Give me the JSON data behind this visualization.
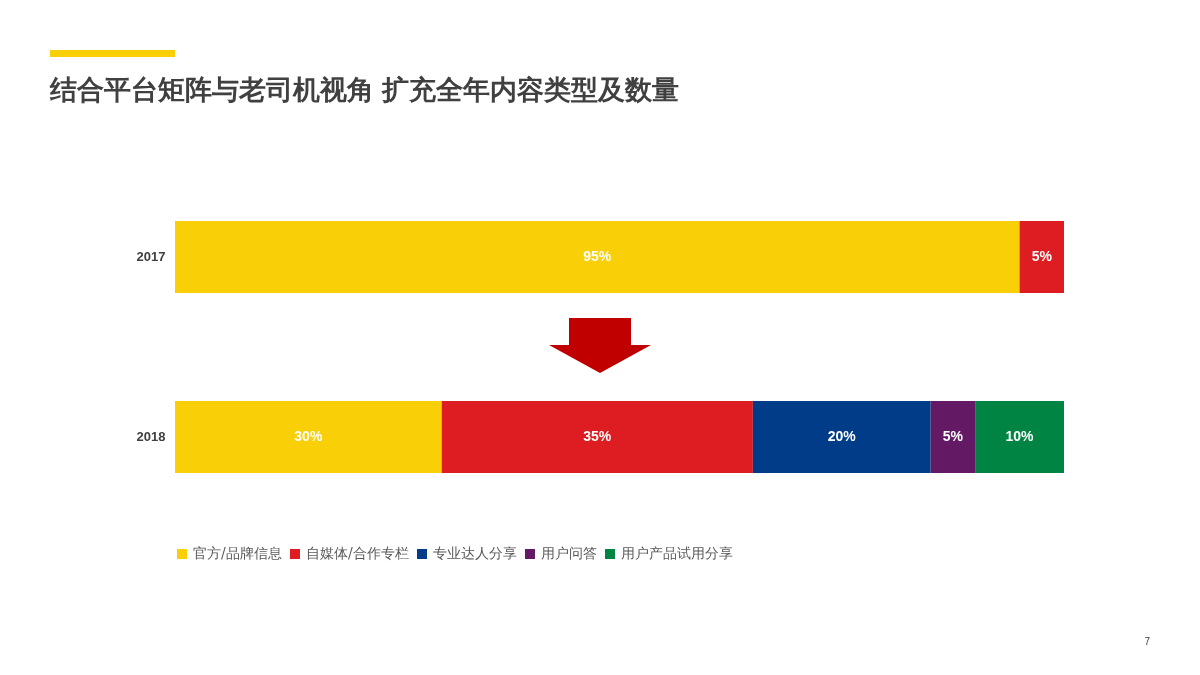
{
  "chart_data": {
    "type": "bar",
    "orientation": "horizontal",
    "stacked": true,
    "title": "结合平台矩阵与老司机视角 扩充全年内容类型及数量",
    "categories": [
      "2017",
      "2018"
    ],
    "xlim": [
      0,
      100
    ],
    "tick_labels": "y",
    "legend": "bottom",
    "series": [
      {
        "name": "官方/品牌信息",
        "color": "#f9cf07",
        "values": [
          95,
          30
        ],
        "value_labels": [
          "95%",
          "30%"
        ]
      },
      {
        "name": "自媒体/合作专栏",
        "color": "#dd1d21",
        "values": [
          5,
          35
        ],
        "value_labels": [
          "5%",
          "35%"
        ]
      },
      {
        "name": "专业达人分享",
        "color": "#003c88",
        "values": [
          null,
          20
        ],
        "value_labels": [
          null,
          "20%"
        ]
      },
      {
        "name": "用户问答",
        "color": "#641964",
        "values": [
          null,
          5
        ],
        "value_labels": [
          null,
          "5%"
        ]
      },
      {
        "name": "用户产品试用分享",
        "color": "#008443",
        "values": [
          null,
          10
        ],
        "value_labels": [
          null,
          "10%"
        ]
      }
    ],
    "annotations": [
      "7"
    ]
  }
}
